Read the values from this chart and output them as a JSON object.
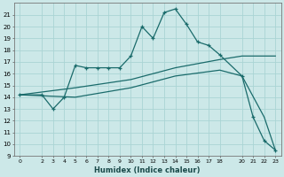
{
  "xlabel": "Humidex (Indice chaleur)",
  "bg_color": "#cce8e8",
  "grid_color": "#aad4d4",
  "line_color": "#1a6b6b",
  "xlim": [
    -0.5,
    23.5
  ],
  "ylim": [
    9,
    22
  ],
  "xticks": [
    0,
    2,
    3,
    4,
    5,
    6,
    7,
    8,
    9,
    10,
    11,
    12,
    13,
    14,
    15,
    16,
    17,
    18,
    20,
    21,
    22,
    23
  ],
  "yticks": [
    9,
    10,
    11,
    12,
    13,
    14,
    15,
    16,
    17,
    18,
    19,
    20,
    21
  ],
  "line1_x": [
    0,
    2,
    3,
    4,
    5,
    6,
    7,
    8,
    9,
    10,
    11,
    12,
    13,
    14,
    15,
    16,
    17,
    18,
    20,
    21,
    22,
    23
  ],
  "line1_y": [
    14.2,
    14.2,
    13.0,
    14.0,
    16.7,
    16.5,
    16.5,
    16.5,
    16.5,
    17.5,
    20.0,
    19.0,
    21.2,
    21.5,
    20.2,
    18.7,
    18.4,
    17.6,
    15.8,
    12.3,
    10.3,
    9.5
  ],
  "line2_x": [
    0,
    5,
    10,
    14,
    18,
    20,
    23
  ],
  "line2_y": [
    14.2,
    14.8,
    15.5,
    16.5,
    17.2,
    17.5,
    17.5
  ],
  "line3_x": [
    0,
    5,
    10,
    14,
    18,
    20,
    22,
    23
  ],
  "line3_y": [
    14.2,
    14.0,
    14.8,
    15.8,
    16.3,
    15.8,
    12.3,
    9.5
  ]
}
